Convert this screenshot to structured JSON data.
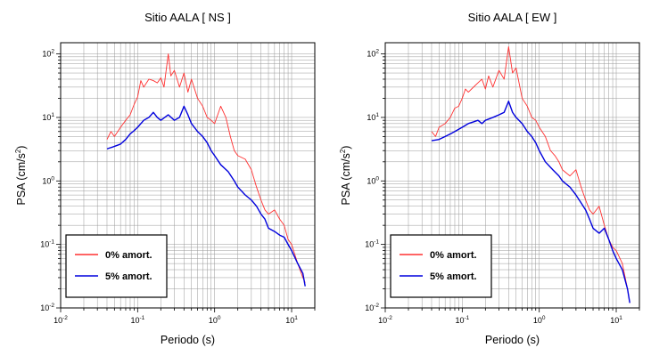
{
  "chart_data": [
    {
      "type": "line",
      "title": "Sitio AALA [ NS ]",
      "xlabel": "Periodo (s)",
      "ylabel": {
        "base": "PSA (cm/s",
        "sup": "2",
        "end": ")"
      },
      "xscale": "log",
      "yscale": "log",
      "xlim": [
        0.01,
        20
      ],
      "ylim": [
        0.01,
        150
      ],
      "xticks": [
        {
          "base": "10",
          "exp": "-2",
          "value": 0.01
        },
        {
          "base": "10",
          "exp": "-1",
          "value": 0.1
        },
        {
          "base": "10",
          "exp": "0",
          "value": 1
        },
        {
          "base": "10",
          "exp": "1",
          "value": 10
        }
      ],
      "yticks": [
        {
          "base": "10",
          "exp": "-2",
          "value": 0.01
        },
        {
          "base": "10",
          "exp": "-1",
          "value": 0.1
        },
        {
          "base": "10",
          "exp": "0",
          "value": 1
        },
        {
          "base": "10",
          "exp": "1",
          "value": 10
        },
        {
          "base": "10",
          "exp": "2",
          "value": 100
        }
      ],
      "grid": true,
      "legend_position": "bottom-left",
      "series": [
        {
          "name": "0% amort.",
          "color": "#ff3030",
          "points": [
            [
              0.04,
              4.5
            ],
            [
              0.045,
              6
            ],
            [
              0.05,
              5
            ],
            [
              0.06,
              7
            ],
            [
              0.07,
              9
            ],
            [
              0.08,
              11
            ],
            [
              0.09,
              16
            ],
            [
              0.1,
              21
            ],
            [
              0.11,
              38
            ],
            [
              0.12,
              30
            ],
            [
              0.14,
              40
            ],
            [
              0.16,
              38
            ],
            [
              0.18,
              35
            ],
            [
              0.2,
              42
            ],
            [
              0.22,
              30
            ],
            [
              0.25,
              100
            ],
            [
              0.27,
              45
            ],
            [
              0.3,
              55
            ],
            [
              0.35,
              30
            ],
            [
              0.4,
              50
            ],
            [
              0.45,
              25
            ],
            [
              0.5,
              40
            ],
            [
              0.6,
              20
            ],
            [
              0.7,
              15
            ],
            [
              0.8,
              10
            ],
            [
              0.9,
              9
            ],
            [
              1.0,
              8
            ],
            [
              1.2,
              15
            ],
            [
              1.4,
              10
            ],
            [
              1.6,
              5
            ],
            [
              1.8,
              3
            ],
            [
              2.0,
              2.5
            ],
            [
              2.5,
              2.2
            ],
            [
              3.0,
              1.5
            ],
            [
              3.5,
              0.8
            ],
            [
              4.0,
              0.5
            ],
            [
              4.5,
              0.35
            ],
            [
              5.0,
              0.3
            ],
            [
              6.0,
              0.35
            ],
            [
              7.0,
              0.25
            ],
            [
              8.0,
              0.2
            ],
            [
              9.0,
              0.12
            ],
            [
              10.0,
              0.1
            ],
            [
              12.0,
              0.05
            ],
            [
              14.0,
              0.03
            ],
            [
              15.0,
              0.025
            ]
          ]
        },
        {
          "name": "5% amort.",
          "color": "#0000dd",
          "points": [
            [
              0.04,
              3.2
            ],
            [
              0.05,
              3.5
            ],
            [
              0.06,
              3.8
            ],
            [
              0.07,
              4.5
            ],
            [
              0.08,
              5.5
            ],
            [
              0.09,
              6.2
            ],
            [
              0.1,
              7
            ],
            [
              0.12,
              9
            ],
            [
              0.14,
              10
            ],
            [
              0.16,
              12
            ],
            [
              0.18,
              10
            ],
            [
              0.2,
              9
            ],
            [
              0.25,
              11
            ],
            [
              0.3,
              9
            ],
            [
              0.35,
              10
            ],
            [
              0.4,
              15
            ],
            [
              0.45,
              11
            ],
            [
              0.5,
              8
            ],
            [
              0.6,
              6
            ],
            [
              0.7,
              5
            ],
            [
              0.8,
              4
            ],
            [
              0.9,
              3
            ],
            [
              1.0,
              2.5
            ],
            [
              1.2,
              1.8
            ],
            [
              1.5,
              1.4
            ],
            [
              1.8,
              1.0
            ],
            [
              2.0,
              0.8
            ],
            [
              2.5,
              0.6
            ],
            [
              3.0,
              0.5
            ],
            [
              3.5,
              0.4
            ],
            [
              4.0,
              0.3
            ],
            [
              4.5,
              0.25
            ],
            [
              5.0,
              0.18
            ],
            [
              6.0,
              0.16
            ],
            [
              7.0,
              0.14
            ],
            [
              8.0,
              0.13
            ],
            [
              9.0,
              0.1
            ],
            [
              10.0,
              0.08
            ],
            [
              12.0,
              0.05
            ],
            [
              14.0,
              0.035
            ],
            [
              15.0,
              0.022
            ]
          ]
        }
      ]
    },
    {
      "type": "line",
      "title": "Sitio AALA [ EW ]",
      "xlabel": "Periodo (s)",
      "ylabel": {
        "base": "PSA (cm/s",
        "sup": "2",
        "end": ")"
      },
      "xscale": "log",
      "yscale": "log",
      "xlim": [
        0.01,
        20
      ],
      "ylim": [
        0.01,
        150
      ],
      "xticks": [
        {
          "base": "10",
          "exp": "-2",
          "value": 0.01
        },
        {
          "base": "10",
          "exp": "-1",
          "value": 0.1
        },
        {
          "base": "10",
          "exp": "0",
          "value": 1
        },
        {
          "base": "10",
          "exp": "1",
          "value": 10
        }
      ],
      "yticks": [
        {
          "base": "10",
          "exp": "-2",
          "value": 0.01
        },
        {
          "base": "10",
          "exp": "-1",
          "value": 0.1
        },
        {
          "base": "10",
          "exp": "0",
          "value": 1
        },
        {
          "base": "10",
          "exp": "1",
          "value": 10
        },
        {
          "base": "10",
          "exp": "2",
          "value": 100
        }
      ],
      "grid": true,
      "legend_position": "bottom-left",
      "series": [
        {
          "name": "0% amort.",
          "color": "#ff3030",
          "points": [
            [
              0.04,
              6
            ],
            [
              0.045,
              5
            ],
            [
              0.05,
              7
            ],
            [
              0.06,
              8
            ],
            [
              0.07,
              10
            ],
            [
              0.08,
              14
            ],
            [
              0.09,
              15
            ],
            [
              0.1,
              20
            ],
            [
              0.11,
              28
            ],
            [
              0.12,
              25
            ],
            [
              0.14,
              30
            ],
            [
              0.16,
              35
            ],
            [
              0.18,
              40
            ],
            [
              0.2,
              28
            ],
            [
              0.22,
              45
            ],
            [
              0.25,
              30
            ],
            [
              0.3,
              55
            ],
            [
              0.35,
              40
            ],
            [
              0.4,
              130
            ],
            [
              0.45,
              50
            ],
            [
              0.5,
              60
            ],
            [
              0.6,
              20
            ],
            [
              0.7,
              15
            ],
            [
              0.8,
              10
            ],
            [
              0.9,
              9
            ],
            [
              1.0,
              7
            ],
            [
              1.2,
              5
            ],
            [
              1.4,
              3
            ],
            [
              1.6,
              2.5
            ],
            [
              1.8,
              2
            ],
            [
              2.0,
              1.5
            ],
            [
              2.5,
              1.2
            ],
            [
              3.0,
              1.5
            ],
            [
              3.5,
              0.8
            ],
            [
              4.0,
              0.5
            ],
            [
              4.5,
              0.35
            ],
            [
              5.0,
              0.3
            ],
            [
              6.0,
              0.4
            ],
            [
              7.0,
              0.2
            ],
            [
              8.0,
              0.12
            ],
            [
              9.0,
              0.09
            ],
            [
              10.0,
              0.08
            ],
            [
              12.0,
              0.05
            ],
            [
              14.0,
              0.02
            ],
            [
              15.0,
              0.012
            ]
          ]
        },
        {
          "name": "5% amort.",
          "color": "#0000dd",
          "points": [
            [
              0.04,
              4.3
            ],
            [
              0.05,
              4.5
            ],
            [
              0.06,
              5
            ],
            [
              0.07,
              5.5
            ],
            [
              0.08,
              6
            ],
            [
              0.09,
              6.5
            ],
            [
              0.1,
              7
            ],
            [
              0.12,
              8
            ],
            [
              0.14,
              8.5
            ],
            [
              0.16,
              9
            ],
            [
              0.18,
              8
            ],
            [
              0.2,
              9
            ],
            [
              0.25,
              10
            ],
            [
              0.3,
              11
            ],
            [
              0.35,
              12
            ],
            [
              0.4,
              18
            ],
            [
              0.45,
              12
            ],
            [
              0.5,
              10
            ],
            [
              0.6,
              8
            ],
            [
              0.7,
              6
            ],
            [
              0.8,
              5
            ],
            [
              0.9,
              4
            ],
            [
              1.0,
              3
            ],
            [
              1.2,
              2
            ],
            [
              1.5,
              1.5
            ],
            [
              1.8,
              1.2
            ],
            [
              2.0,
              1
            ],
            [
              2.5,
              0.8
            ],
            [
              3.0,
              0.6
            ],
            [
              3.5,
              0.45
            ],
            [
              4.0,
              0.35
            ],
            [
              4.5,
              0.25
            ],
            [
              5.0,
              0.18
            ],
            [
              6.0,
              0.15
            ],
            [
              7.0,
              0.18
            ],
            [
              8.0,
              0.12
            ],
            [
              9.0,
              0.08
            ],
            [
              10.0,
              0.06
            ],
            [
              12.0,
              0.04
            ],
            [
              14.0,
              0.02
            ],
            [
              15.0,
              0.012
            ]
          ]
        }
      ]
    }
  ]
}
